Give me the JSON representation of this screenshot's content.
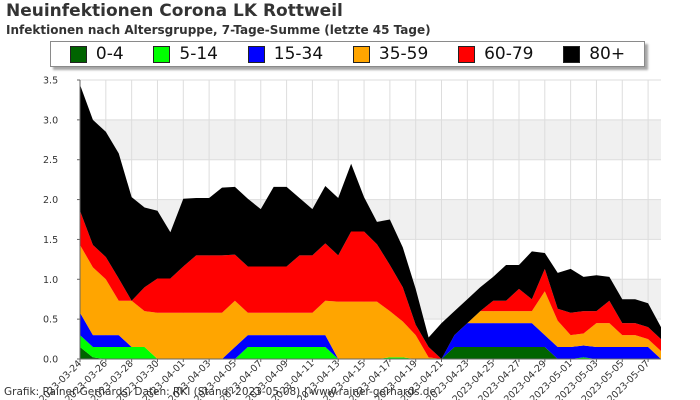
{
  "header": {
    "title": "Neuinfektionen Corona LK Rottweil",
    "subtitle": "Infektionen nach Altersgruppe, 7-Tage-Summe (letzte 45 Tage)"
  },
  "footer": {
    "credit": "Grafik: Rainer Gerhards, Daten: RKI (Stand: 2023-05-08) | www.rainer-gerhards.de"
  },
  "colors": {
    "background_band": "#f0f0f0",
    "grid": "#dddddd",
    "axis": "#666666"
  },
  "chart_data": {
    "type": "area",
    "stacked": true,
    "ylim": [
      0,
      3.5
    ],
    "yticks": [
      "0.0",
      "0.5",
      "1.0",
      "1.5",
      "2.0",
      "2.5",
      "3.0",
      "3.5"
    ],
    "grid": true,
    "legend_position": "top",
    "x": [
      "2023-03-24",
      "2023-03-25",
      "2023-03-26",
      "2023-03-27",
      "2023-03-28",
      "2023-03-29",
      "2023-03-30",
      "2023-03-31",
      "2023-04-01",
      "2023-04-02",
      "2023-04-03",
      "2023-04-04",
      "2023-04-05",
      "2023-04-06",
      "2023-04-07",
      "2023-04-08",
      "2023-04-09",
      "2023-04-10",
      "2023-04-11",
      "2023-04-12",
      "2023-04-13",
      "2023-04-14",
      "2023-04-15",
      "2023-04-16",
      "2023-04-17",
      "2023-04-18",
      "2023-04-19",
      "2023-04-20",
      "2023-04-21",
      "2023-04-22",
      "2023-04-23",
      "2023-04-24",
      "2023-04-25",
      "2023-04-26",
      "2023-04-27",
      "2023-04-28",
      "2023-04-29",
      "2023-04-30",
      "2023-05-01",
      "2023-05-02",
      "2023-05-03",
      "2023-05-04",
      "2023-05-05",
      "2023-05-06",
      "2023-05-07",
      "2023-05-08"
    ],
    "xtick_labels": [
      "2023-03-24",
      "2023-03-26",
      "2023-03-28",
      "2023-03-30",
      "2023-04-01",
      "2023-04-03",
      "2023-04-05",
      "2023-04-07",
      "2023-04-09",
      "2023-04-11",
      "2023-04-13",
      "2023-04-15",
      "2023-04-17",
      "2023-04-19",
      "2023-04-21",
      "2023-04-23",
      "2023-04-25",
      "2023-04-27",
      "2023-04-29",
      "2023-05-01",
      "2023-05-03",
      "2023-05-05",
      "2023-05-07"
    ],
    "series": [
      {
        "name": "0-4",
        "color": "#006400",
        "values": [
          0.15,
          0.02,
          0,
          0,
          0,
          0,
          0,
          0,
          0,
          0,
          0,
          0,
          0,
          0,
          0,
          0,
          0,
          0,
          0,
          0,
          0,
          0,
          0,
          0,
          0,
          0,
          0,
          0,
          0,
          0.15,
          0.15,
          0.15,
          0.15,
          0.15,
          0.15,
          0.15,
          0.15,
          0,
          0,
          0,
          0,
          0,
          0,
          0,
          0,
          0
        ]
      },
      {
        "name": "5-14",
        "color": "#00ff00",
        "values": [
          0.15,
          0.13,
          0.15,
          0.15,
          0.15,
          0.15,
          0,
          0,
          0,
          0,
          0,
          0,
          0,
          0.15,
          0.15,
          0.15,
          0.15,
          0.15,
          0.15,
          0.15,
          0,
          0,
          0,
          0,
          0.02,
          0.02,
          0,
          0,
          0,
          0,
          0,
          0,
          0,
          0,
          0,
          0,
          0,
          0,
          0,
          0.02,
          0,
          0,
          0,
          0,
          0,
          0
        ]
      },
      {
        "name": "15-34",
        "color": "#0000ff",
        "values": [
          0.28,
          0.15,
          0.15,
          0.15,
          0,
          0,
          0,
          0,
          0,
          0,
          0,
          0,
          0.15,
          0.15,
          0.15,
          0.15,
          0.15,
          0.15,
          0.15,
          0.15,
          0,
          0,
          0,
          0,
          0,
          0,
          0,
          0,
          0,
          0.15,
          0.3,
          0.3,
          0.3,
          0.3,
          0.3,
          0.3,
          0.15,
          0.15,
          0.15,
          0.15,
          0.15,
          0.15,
          0.15,
          0.15,
          0.15,
          0
        ]
      },
      {
        "name": "35-59",
        "color": "#ffa500",
        "values": [
          0.85,
          0.85,
          0.7,
          0.43,
          0.58,
          0.45,
          0.58,
          0.58,
          0.58,
          0.58,
          0.58,
          0.58,
          0.58,
          0.28,
          0.28,
          0.28,
          0.28,
          0.28,
          0.28,
          0.43,
          0.72,
          0.72,
          0.72,
          0.72,
          0.58,
          0.45,
          0.3,
          0.02,
          0,
          0,
          0,
          0.15,
          0.15,
          0.15,
          0.15,
          0.15,
          0.55,
          0.33,
          0.15,
          0.15,
          0.3,
          0.3,
          0.15,
          0.15,
          0.1,
          0.1
        ]
      },
      {
        "name": "60-79",
        "color": "#ff0000",
        "values": [
          0.43,
          0.28,
          0.28,
          0.28,
          0,
          0.3,
          0.43,
          0.43,
          0.58,
          0.72,
          0.72,
          0.72,
          0.58,
          0.58,
          0.58,
          0.58,
          0.58,
          0.72,
          0.72,
          0.72,
          0.58,
          0.88,
          0.88,
          0.72,
          0.58,
          0.43,
          0.13,
          0.13,
          0,
          0,
          0,
          0,
          0.13,
          0.13,
          0.28,
          0.15,
          0.28,
          0.15,
          0.28,
          0.28,
          0.15,
          0.28,
          0.15,
          0.15,
          0.15,
          0.15
        ]
      },
      {
        "name": "80+",
        "color": "#000000",
        "values": [
          1.58,
          1.57,
          1.57,
          1.57,
          1.3,
          1.0,
          0.85,
          0.58,
          0.85,
          0.72,
          0.72,
          0.85,
          0.85,
          0.85,
          0.72,
          1.0,
          1.0,
          0.72,
          0.58,
          0.72,
          0.72,
          0.85,
          0.43,
          0.28,
          0.57,
          0.5,
          0.45,
          0.12,
          0.45,
          0.3,
          0.3,
          0.3,
          0.3,
          0.45,
          0.3,
          0.6,
          0.2,
          0.45,
          0.55,
          0.43,
          0.45,
          0.3,
          0.3,
          0.3,
          0.3,
          0.15
        ]
      }
    ]
  }
}
